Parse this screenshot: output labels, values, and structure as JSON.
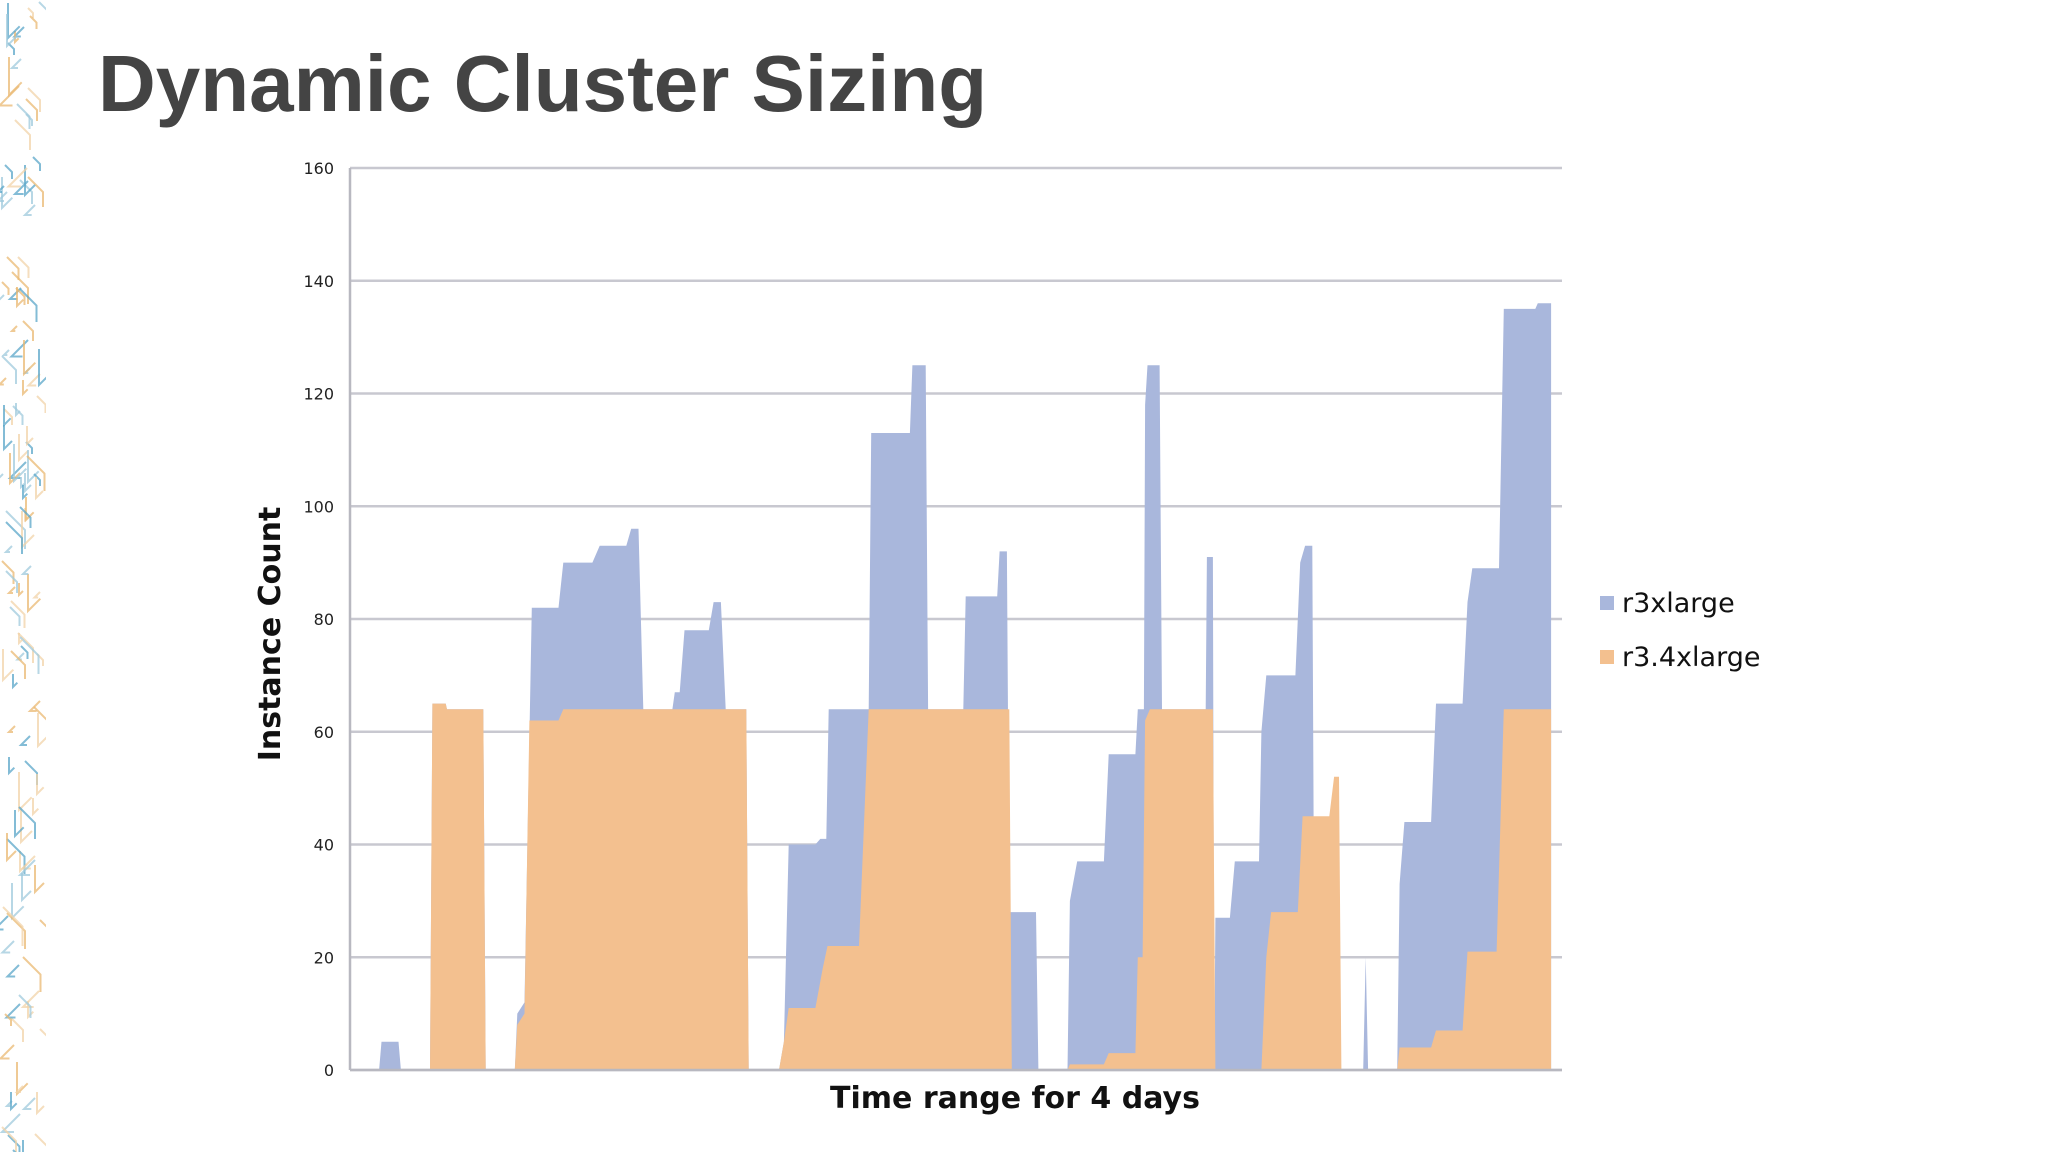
{
  "slide": {
    "title": "Dynamic Cluster Sizing"
  },
  "colors": {
    "title": "#444444",
    "r3xlarge": "#a9b7dc",
    "r3_4xlarge": "#f3c08f",
    "grid": "#c8c8d0",
    "decor_blue": "#5aa6c8",
    "decor_orange": "#e9b872"
  },
  "chart_data": {
    "type": "area",
    "stacked": true,
    "title": "",
    "xlabel": "Time range for 4 days",
    "ylabel": "Instance Count",
    "ylim": [
      0,
      160
    ],
    "yticks": [
      0,
      20,
      40,
      60,
      80,
      100,
      120,
      140,
      160
    ],
    "grid": true,
    "legend_position": "right",
    "x_range": [
      0,
      1000
    ],
    "series": [
      {
        "name": "r3xlarge",
        "color": "#a9b7dc",
        "top_points": [
          [
            0,
            0
          ],
          [
            24,
            0
          ],
          [
            26,
            5
          ],
          [
            40,
            5
          ],
          [
            42,
            0
          ],
          [
            66,
            0
          ],
          [
            68,
            65
          ],
          [
            79,
            65
          ],
          [
            80,
            64
          ],
          [
            110,
            64
          ],
          [
            112,
            0
          ],
          [
            136,
            0
          ],
          [
            138,
            10
          ],
          [
            144,
            12
          ],
          [
            150,
            82
          ],
          [
            172,
            82
          ],
          [
            176,
            90
          ],
          [
            200,
            90
          ],
          [
            206,
            93
          ],
          [
            228,
            93
          ],
          [
            232,
            96
          ],
          [
            238,
            96
          ],
          [
            242,
            64
          ],
          [
            266,
            64
          ],
          [
            268,
            67
          ],
          [
            272,
            67
          ],
          [
            276,
            78
          ],
          [
            296,
            78
          ],
          [
            300,
            83
          ],
          [
            306,
            83
          ],
          [
            310,
            64
          ],
          [
            327,
            64
          ],
          [
            329,
            0
          ],
          [
            354,
            0
          ],
          [
            358,
            5
          ],
          [
            362,
            40
          ],
          [
            384,
            40
          ],
          [
            388,
            41
          ],
          [
            393,
            41
          ],
          [
            395,
            64
          ],
          [
            428,
            64
          ],
          [
            430,
            113
          ],
          [
            462,
            113
          ],
          [
            464,
            125
          ],
          [
            475,
            125
          ],
          [
            477,
            64
          ],
          [
            504,
            64
          ],
          [
            506,
            64
          ],
          [
            508,
            84
          ],
          [
            534,
            84
          ],
          [
            536,
            92
          ],
          [
            542,
            92
          ],
          [
            544,
            28
          ],
          [
            566,
            28
          ],
          [
            568,
            0
          ],
          [
            592,
            0
          ],
          [
            594,
            30
          ],
          [
            600,
            37
          ],
          [
            622,
            37
          ],
          [
            626,
            56
          ],
          [
            648,
            56
          ],
          [
            650,
            64
          ],
          [
            655,
            64
          ],
          [
            656,
            118
          ],
          [
            658,
            125
          ],
          [
            668,
            125
          ],
          [
            670,
            64
          ],
          [
            706,
            64
          ],
          [
            707,
            91
          ],
          [
            712,
            91
          ],
          [
            713,
            0
          ],
          [
            714,
            27
          ],
          [
            726,
            27
          ],
          [
            730,
            37
          ],
          [
            750,
            37
          ],
          [
            752,
            60
          ],
          [
            756,
            70
          ],
          [
            780,
            70
          ],
          [
            784,
            90
          ],
          [
            788,
            93
          ],
          [
            794,
            93
          ],
          [
            796,
            0
          ],
          [
            836,
            0
          ],
          [
            838,
            20
          ],
          [
            840,
            0
          ],
          [
            864,
            0
          ],
          [
            866,
            33
          ],
          [
            870,
            44
          ],
          [
            892,
            44
          ],
          [
            896,
            65
          ],
          [
            918,
            65
          ],
          [
            922,
            83
          ],
          [
            926,
            89
          ],
          [
            948,
            89
          ],
          [
            952,
            135
          ],
          [
            978,
            135
          ],
          [
            980,
            136
          ],
          [
            990,
            136
          ],
          [
            991,
            136
          ]
        ]
      },
      {
        "name": "r3.4xlarge",
        "color": "#f3c08f",
        "top_points": [
          [
            0,
            0
          ],
          [
            66,
            0
          ],
          [
            68,
            65
          ],
          [
            79,
            65
          ],
          [
            80,
            64
          ],
          [
            110,
            64
          ],
          [
            112,
            0
          ],
          [
            136,
            0
          ],
          [
            138,
            8
          ],
          [
            144,
            10
          ],
          [
            148,
            62
          ],
          [
            172,
            62
          ],
          [
            176,
            64
          ],
          [
            327,
            64
          ],
          [
            329,
            0
          ],
          [
            354,
            0
          ],
          [
            358,
            5
          ],
          [
            362,
            11
          ],
          [
            384,
            11
          ],
          [
            390,
            18
          ],
          [
            394,
            22
          ],
          [
            420,
            22
          ],
          [
            428,
            64
          ],
          [
            544,
            64
          ],
          [
            546,
            0
          ],
          [
            592,
            0
          ],
          [
            594,
            1
          ],
          [
            622,
            1
          ],
          [
            626,
            3
          ],
          [
            648,
            3
          ],
          [
            650,
            20
          ],
          [
            654,
            20
          ],
          [
            656,
            62
          ],
          [
            660,
            64
          ],
          [
            706,
            64
          ],
          [
            712,
            64
          ],
          [
            714,
            0
          ],
          [
            752,
            0
          ],
          [
            756,
            20
          ],
          [
            760,
            28
          ],
          [
            782,
            28
          ],
          [
            786,
            45
          ],
          [
            808,
            45
          ],
          [
            812,
            52
          ],
          [
            816,
            52
          ],
          [
            818,
            0
          ],
          [
            864,
            0
          ],
          [
            866,
            4
          ],
          [
            892,
            4
          ],
          [
            896,
            7
          ],
          [
            918,
            7
          ],
          [
            922,
            21
          ],
          [
            946,
            21
          ],
          [
            952,
            64
          ],
          [
            990,
            64
          ],
          [
            991,
            64
          ]
        ]
      }
    ]
  }
}
